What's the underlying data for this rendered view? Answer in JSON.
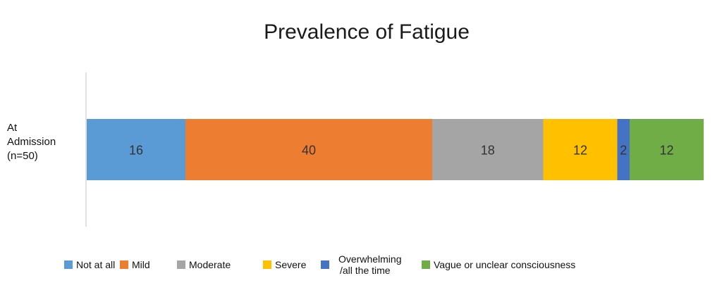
{
  "chart_data": {
    "type": "bar",
    "orientation": "horizontal",
    "stacked": true,
    "title": "Prevalence of Fatigue",
    "categories": [
      "At Admission (n=50)"
    ],
    "category_lines": [
      "At",
      "Admission",
      "(n=50)"
    ],
    "series": [
      {
        "name": "Not at all",
        "values": [
          16
        ],
        "color": "#5B9BD5"
      },
      {
        "name": "Mild",
        "values": [
          40
        ],
        "color": "#ED7D31"
      },
      {
        "name": "Moderate",
        "values": [
          18
        ],
        "color": "#A5A5A5"
      },
      {
        "name": "Severe",
        "values": [
          12
        ],
        "color": "#FFC000"
      },
      {
        "name": "Overwhelming /all the time",
        "legend_lines": [
          "Overwhelming",
          "/all the time"
        ],
        "values": [
          2
        ],
        "color": "#4472C4"
      },
      {
        "name": "Vague or unclear consciousness",
        "values": [
          12
        ],
        "color": "#70AD47"
      }
    ],
    "xlim": [
      0,
      100
    ],
    "grid": false,
    "legend_position": "bottom"
  }
}
